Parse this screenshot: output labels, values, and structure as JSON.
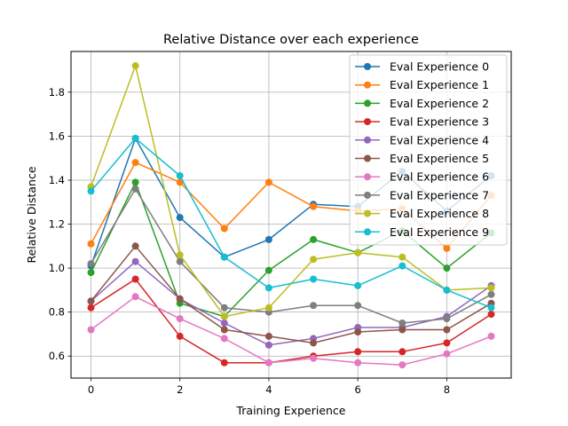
{
  "chart_data": {
    "type": "line",
    "title": "Relative Distance over each experience",
    "xlabel": "Training Experience",
    "ylabel": "Relative Distance",
    "x": [
      0,
      1,
      2,
      3,
      4,
      5,
      6,
      7,
      8,
      9
    ],
    "xlim": [
      -0.45,
      9.45
    ],
    "ylim": [
      0.5,
      1.985
    ],
    "xticks": [
      0,
      2,
      4,
      6,
      8
    ],
    "xtick_labels": [
      "0",
      "2",
      "4",
      "6",
      "8"
    ],
    "yticks": [
      0.6,
      0.8,
      1.0,
      1.2,
      1.4,
      1.6,
      1.8
    ],
    "ytick_labels": [
      "0.6",
      "0.8",
      "1.0",
      "1.2",
      "1.4",
      "1.6",
      "1.8"
    ],
    "grid": true,
    "legend_position": "top-right",
    "series": [
      {
        "name": "Eval Experience 0",
        "color": "#1f77b4",
        "values": [
          1.01,
          1.59,
          1.23,
          1.05,
          1.13,
          1.29,
          1.28,
          1.44,
          1.26,
          1.42
        ]
      },
      {
        "name": "Eval Experience 1",
        "color": "#ff7f0e",
        "values": [
          1.11,
          1.48,
          1.39,
          1.18,
          1.39,
          1.28,
          1.26,
          1.27,
          1.09,
          1.33
        ]
      },
      {
        "name": "Eval Experience 2",
        "color": "#2ca02c",
        "values": [
          0.98,
          1.39,
          0.84,
          0.78,
          0.99,
          1.13,
          1.07,
          1.17,
          1.0,
          1.16
        ]
      },
      {
        "name": "Eval Experience 3",
        "color": "#d62728",
        "values": [
          0.82,
          0.95,
          0.69,
          0.57,
          0.57,
          0.6,
          0.62,
          0.62,
          0.66,
          0.79
        ]
      },
      {
        "name": "Eval Experience 4",
        "color": "#9467bd",
        "values": [
          0.85,
          1.03,
          0.86,
          0.75,
          0.65,
          0.68,
          0.73,
          0.73,
          0.78,
          0.92
        ]
      },
      {
        "name": "Eval Experience 5",
        "color": "#8c564b",
        "values": [
          0.85,
          1.1,
          0.86,
          0.72,
          0.69,
          0.66,
          0.71,
          0.72,
          0.72,
          0.84
        ]
      },
      {
        "name": "Eval Experience 6",
        "color": "#e377c2",
        "values": [
          0.72,
          0.87,
          0.77,
          0.68,
          0.57,
          0.59,
          0.57,
          0.56,
          0.61,
          0.69
        ]
      },
      {
        "name": "Eval Experience 7",
        "color": "#7f7f7f",
        "values": [
          1.02,
          1.36,
          1.03,
          0.82,
          0.8,
          0.83,
          0.83,
          0.75,
          0.77,
          0.88
        ]
      },
      {
        "name": "Eval Experience 8",
        "color": "#bcbd22",
        "values": [
          1.37,
          1.92,
          1.06,
          0.78,
          0.82,
          1.04,
          1.07,
          1.05,
          0.9,
          0.91
        ]
      },
      {
        "name": "Eval Experience 9",
        "color": "#17becf",
        "values": [
          1.35,
          1.59,
          1.42,
          1.05,
          0.91,
          0.95,
          0.92,
          1.01,
          0.9,
          0.82
        ]
      }
    ]
  }
}
